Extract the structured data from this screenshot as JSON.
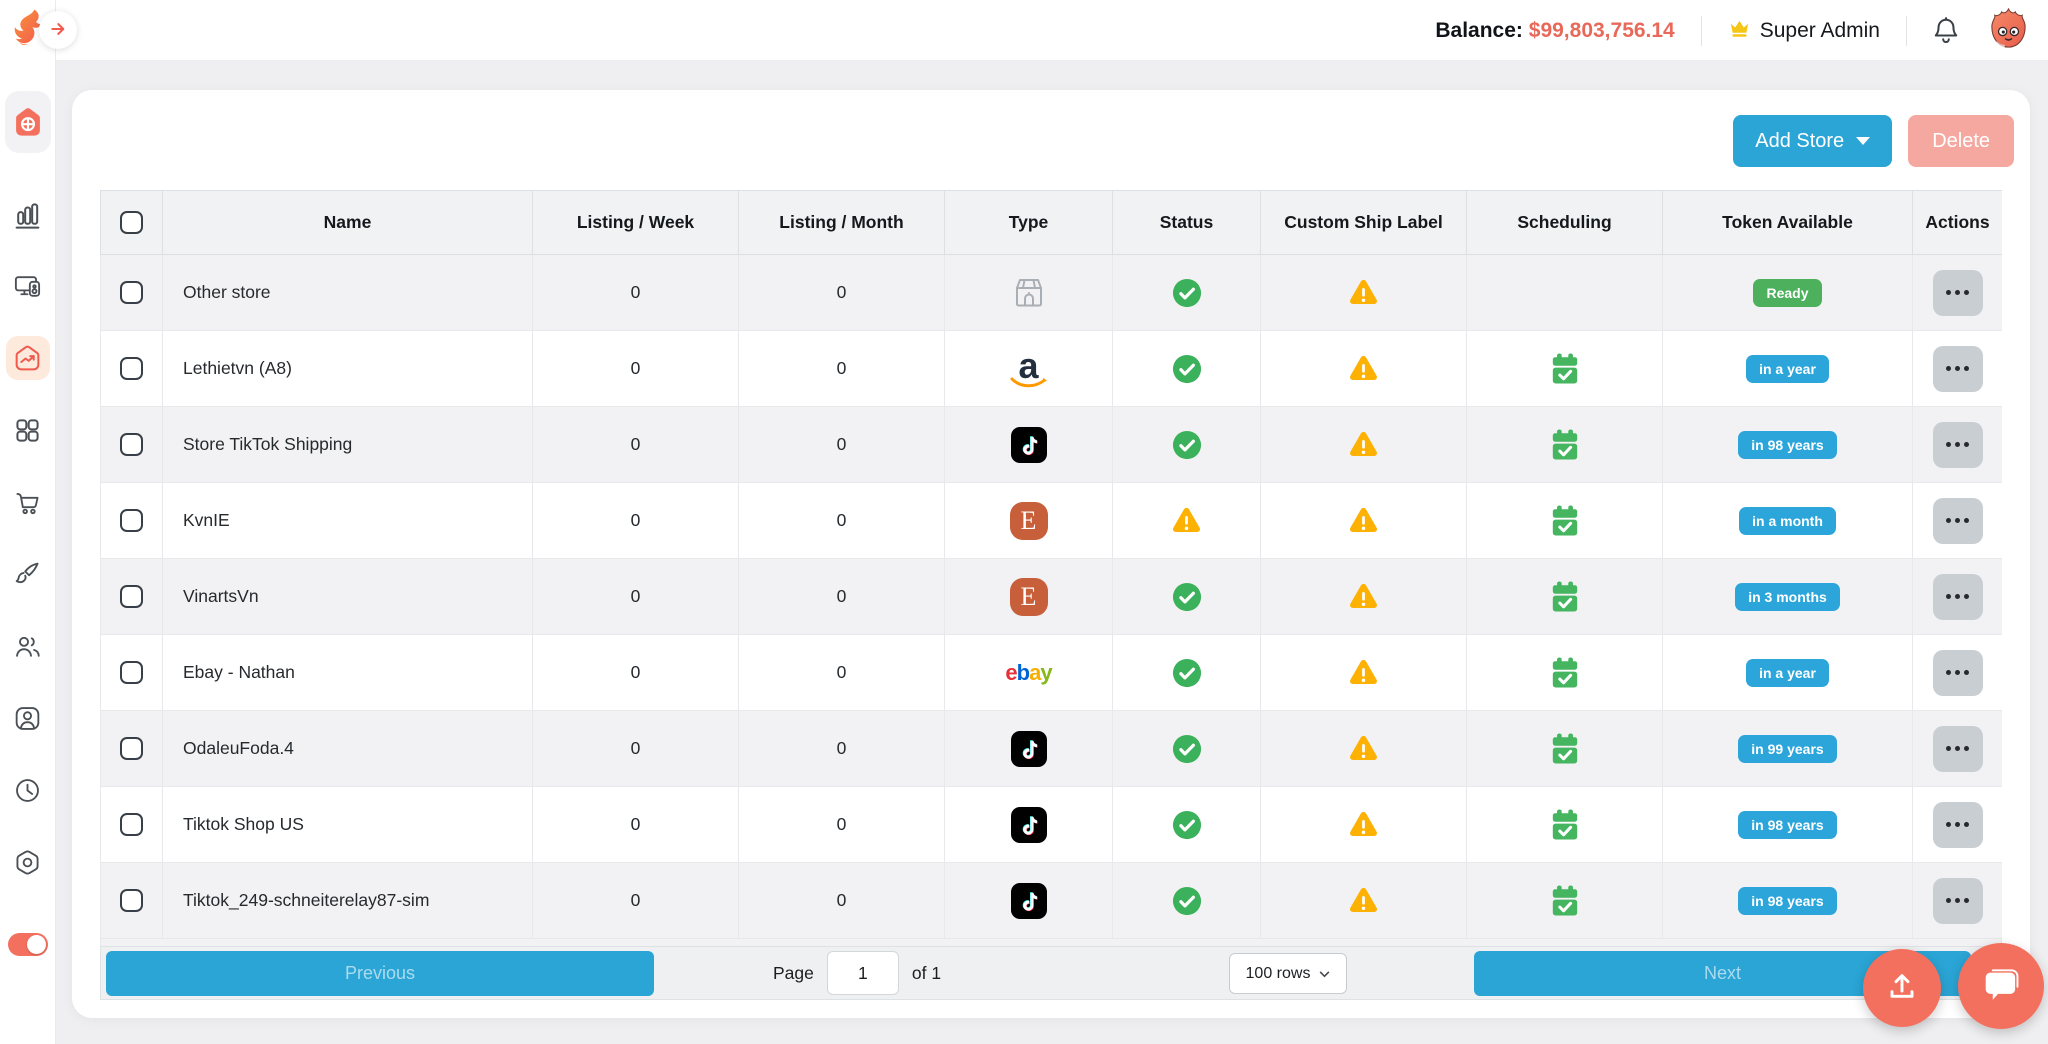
{
  "topbar": {
    "balance_label": "Balance:",
    "balance_value": "$99,803,756.14",
    "role_label": "Super Admin"
  },
  "toolbar": {
    "add_store_label": "Add Store",
    "delete_label": "Delete"
  },
  "table": {
    "columns": [
      "Name",
      "Listing / Week",
      "Listing / Month",
      "Type",
      "Status",
      "Custom Ship Label",
      "Scheduling",
      "Token Available",
      "Actions"
    ],
    "rows": [
      {
        "name": "Other store",
        "listing_week": "0",
        "listing_month": "0",
        "type_icon": "store-icon",
        "status_icon": "check-circle-icon",
        "ship_label_icon": "warning-icon",
        "scheduling_icon": "",
        "token_label": "Ready",
        "token_color": "green"
      },
      {
        "name": "Lethietvn (A8)",
        "listing_week": "0",
        "listing_month": "0",
        "type_icon": "amazon-icon",
        "status_icon": "check-circle-icon",
        "ship_label_icon": "warning-icon",
        "scheduling_icon": "calendar-check-icon",
        "token_label": "in a year",
        "token_color": "blue"
      },
      {
        "name": "Store TikTok Shipping",
        "listing_week": "0",
        "listing_month": "0",
        "type_icon": "tiktok-icon",
        "status_icon": "check-circle-icon",
        "ship_label_icon": "warning-icon",
        "scheduling_icon": "calendar-check-icon",
        "token_label": "in 98 years",
        "token_color": "blue"
      },
      {
        "name": "KvnIE",
        "listing_week": "0",
        "listing_month": "0",
        "type_icon": "etsy-icon",
        "status_icon": "warning-icon",
        "ship_label_icon": "warning-icon",
        "scheduling_icon": "calendar-check-icon",
        "token_label": "in a month",
        "token_color": "blue"
      },
      {
        "name": "VinartsVn",
        "listing_week": "0",
        "listing_month": "0",
        "type_icon": "etsy-icon",
        "status_icon": "check-circle-icon",
        "ship_label_icon": "warning-icon",
        "scheduling_icon": "calendar-check-icon",
        "token_label": "in 3 months",
        "token_color": "blue"
      },
      {
        "name": "Ebay - Nathan",
        "listing_week": "0",
        "listing_month": "0",
        "type_icon": "ebay-icon",
        "status_icon": "check-circle-icon",
        "ship_label_icon": "warning-icon",
        "scheduling_icon": "calendar-check-icon",
        "token_label": "in a year",
        "token_color": "blue"
      },
      {
        "name": "OdaleuFoda.4",
        "listing_week": "0",
        "listing_month": "0",
        "type_icon": "tiktok-icon",
        "status_icon": "check-circle-icon",
        "ship_label_icon": "warning-icon",
        "scheduling_icon": "calendar-check-icon",
        "token_label": "in 99 years",
        "token_color": "blue"
      },
      {
        "name": "Tiktok Shop US",
        "listing_week": "0",
        "listing_month": "0",
        "type_icon": "tiktok-icon",
        "status_icon": "check-circle-icon",
        "ship_label_icon": "warning-icon",
        "scheduling_icon": "calendar-check-icon",
        "token_label": "in 98 years",
        "token_color": "blue"
      },
      {
        "name": "Tiktok_249-schneiterelay87-sim",
        "listing_week": "0",
        "listing_month": "0",
        "type_icon": "tiktok-icon",
        "status_icon": "check-circle-icon",
        "ship_label_icon": "warning-icon",
        "scheduling_icon": "calendar-check-icon",
        "token_label": "in 98 years",
        "token_color": "blue"
      }
    ]
  },
  "pagination": {
    "previous_label": "Previous",
    "page_label": "Page",
    "page_value": "1",
    "of_label": "of 1",
    "rows_per_page": "100 rows",
    "next_label": "Next"
  },
  "sidebar": {
    "items": [
      {
        "icon": "home-dashboard-icon",
        "active": true
      },
      {
        "icon": "bar-chart-icon"
      },
      {
        "icon": "devices-icon"
      },
      {
        "icon": "sales-trend-icon",
        "highlighted": true
      },
      {
        "icon": "apps-grid-icon"
      },
      {
        "icon": "cart-icon"
      },
      {
        "icon": "design-brush-icon"
      },
      {
        "icon": "team-users-icon"
      },
      {
        "icon": "account-card-icon"
      },
      {
        "icon": "history-clock-icon"
      },
      {
        "icon": "settings-icon"
      },
      {
        "icon": "theme-toggle",
        "state": "on"
      }
    ]
  },
  "colors": {
    "accent_salmon": "#F4705E",
    "primary_blue": "#2AA5D6",
    "badge_blue": "#2CA6DA",
    "badge_green": "#4CB05C",
    "status_green": "#3CB15C",
    "warning_yellow": "#FCB103",
    "calendar_green": "#45B55F",
    "balance_red": "#E8695A",
    "delete_pink": "#F5A8A0"
  }
}
